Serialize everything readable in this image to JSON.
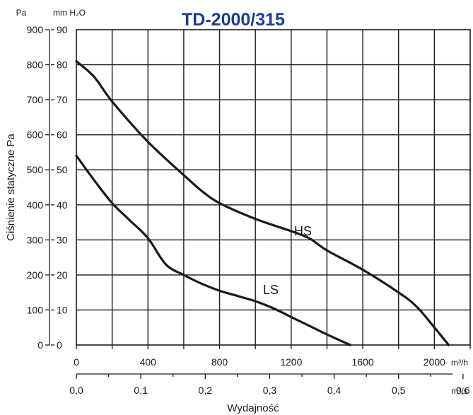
{
  "chart_data": {
    "type": "line",
    "title": "TD-2000/315",
    "ylabel": "Ciśnienie statyczne Pa",
    "xlabel": "Wydajność",
    "y_units": {
      "left": "Pa",
      "right": "mm H₂O"
    },
    "x_units": {
      "primary": "m³/h",
      "secondary": "m³/s"
    },
    "xlim": [
      0,
      2200
    ],
    "ylim": [
      0,
      900
    ],
    "grid": true,
    "y_ticks_pa": [
      "0",
      "100",
      "200",
      "300",
      "400",
      "500",
      "600",
      "700",
      "800",
      "900"
    ],
    "y_ticks_mmh2o": [
      "0",
      "10",
      "20",
      "30",
      "40",
      "50",
      "60",
      "70",
      "80",
      "90"
    ],
    "x_ticks_m3h": [
      "0",
      "400",
      "800",
      "1200",
      "1600",
      "2000"
    ],
    "x_ticks_m3s": [
      "0,0",
      "0,1",
      "0,2",
      "0,3",
      "0,4",
      "0,5",
      "0,6"
    ],
    "series": [
      {
        "name": "HS",
        "points": [
          [
            0,
            810
          ],
          [
            100,
            765
          ],
          [
            200,
            695
          ],
          [
            400,
            580
          ],
          [
            600,
            485
          ],
          [
            700,
            440
          ],
          [
            800,
            405
          ],
          [
            1000,
            360
          ],
          [
            1200,
            325
          ],
          [
            1300,
            305
          ],
          [
            1400,
            270
          ],
          [
            1600,
            215
          ],
          [
            1800,
            150
          ],
          [
            1900,
            110
          ],
          [
            2000,
            50
          ],
          [
            2080,
            0
          ]
        ]
      },
      {
        "name": "LS",
        "points": [
          [
            0,
            540
          ],
          [
            100,
            470
          ],
          [
            200,
            405
          ],
          [
            300,
            355
          ],
          [
            400,
            305
          ],
          [
            500,
            230
          ],
          [
            600,
            200
          ],
          [
            700,
            175
          ],
          [
            800,
            155
          ],
          [
            900,
            140
          ],
          [
            1000,
            125
          ],
          [
            1100,
            105
          ],
          [
            1200,
            80
          ],
          [
            1300,
            55
          ],
          [
            1400,
            30
          ],
          [
            1530,
            0
          ]
        ]
      }
    ]
  }
}
